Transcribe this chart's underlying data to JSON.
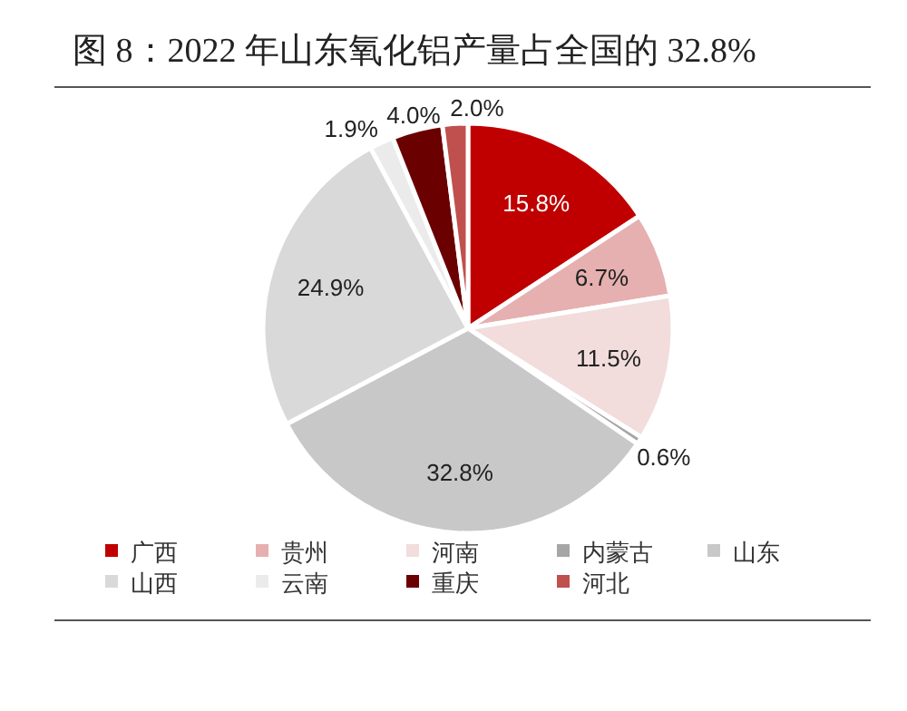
{
  "chart_data": {
    "type": "pie",
    "title": "图 8：2022 年山东氧化铝产量占全国的 32.8%",
    "categories": [
      "广西",
      "贵州",
      "河南",
      "内蒙古",
      "山东",
      "山西",
      "云南",
      "重庆",
      "河北"
    ],
    "values": [
      15.8,
      6.7,
      11.5,
      0.6,
      32.8,
      24.9,
      1.9,
      4.0,
      2.0
    ],
    "colors": [
      "#c00000",
      "#e6b0b0",
      "#f2dcdc",
      "#a6a6a6",
      "#c8c8c8",
      "#d9d9d9",
      "#ebebeb",
      "#6b0000",
      "#c0504d"
    ],
    "value_labels": [
      "15.8%",
      "6.7%",
      "11.5%",
      "0.6%",
      "32.8%",
      "24.9%",
      "1.9%",
      "4.0%",
      "2.0%"
    ],
    "legend": "bottom"
  }
}
